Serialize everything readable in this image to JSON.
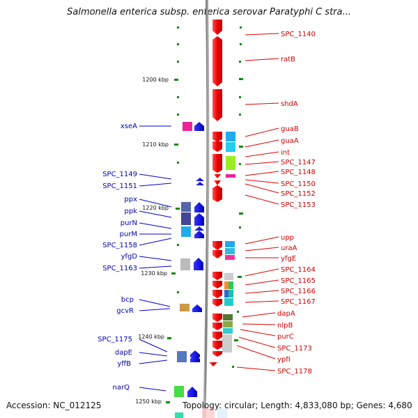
{
  "title": "Salmonella enterica subsp. enterica serovar Paratyphi C stra...",
  "footer": {
    "accession": "Accession: NC_012125",
    "topology": "Topology: circular; Length: 4,833,080 bp; Genes: 4,680"
  },
  "scale": {
    "tick_labels": [
      {
        "label": "1200 kbp",
        "kbp": 1200
      },
      {
        "label": "1210 kbp",
        "kbp": 1210
      },
      {
        "label": "1220 kbp",
        "kbp": 1220
      },
      {
        "label": "1230 kbp",
        "kbp": 1230
      },
      {
        "label": "1240 kbp",
        "kbp": 1240
      },
      {
        "label": "1250 kbp",
        "kbp": 1250
      }
    ]
  },
  "colors": {
    "forward_strand": "#ee0000",
    "reverse_strand": "#0000ee",
    "reverse_label": "#0000aa",
    "forward_label": "#cc0000",
    "tick": "#118811",
    "backbone": "#888888"
  },
  "reverse_genes": [
    {
      "name": "xseA"
    },
    {
      "name": "SPC_1149"
    },
    {
      "name": "SPC_1151"
    },
    {
      "name": "ppx"
    },
    {
      "name": "ppk"
    },
    {
      "name": "purN"
    },
    {
      "name": "purM"
    },
    {
      "name": "SPC_1158"
    },
    {
      "name": "yfgD"
    },
    {
      "name": "SPC_1163"
    },
    {
      "name": "bcp"
    },
    {
      "name": "gcvR"
    },
    {
      "name": "SPC_1175"
    },
    {
      "name": "dapE"
    },
    {
      "name": "yffB"
    },
    {
      "name": "narQ"
    }
  ],
  "forward_genes": [
    {
      "name": "SPC_1140"
    },
    {
      "name": "ratB"
    },
    {
      "name": "shdA"
    },
    {
      "name": "guaB"
    },
    {
      "name": "guaA"
    },
    {
      "name": "int"
    },
    {
      "name": "SPC_1147"
    },
    {
      "name": "SPC_1148"
    },
    {
      "name": "SPC_1150"
    },
    {
      "name": "SPC_1152"
    },
    {
      "name": "SPC_1153"
    },
    {
      "name": "upp"
    },
    {
      "name": "uraA"
    },
    {
      "name": "yfgE"
    },
    {
      "name": "SPC_1164"
    },
    {
      "name": "SPC_1165"
    },
    {
      "name": "SPC_1166"
    },
    {
      "name": "SPC_1167"
    },
    {
      "name": "dapA"
    },
    {
      "name": "nlpB"
    },
    {
      "name": "purC"
    },
    {
      "name": "SPC_1173"
    },
    {
      "name": "ypfI"
    },
    {
      "name": "SPC_1178"
    }
  ]
}
